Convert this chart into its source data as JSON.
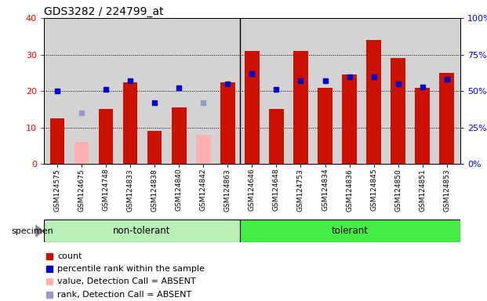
{
  "title": "GDS3282 / 224799_at",
  "samples": [
    "GSM124575",
    "GSM124675",
    "GSM124748",
    "GSM124833",
    "GSM124838",
    "GSM124840",
    "GSM124842",
    "GSM124863",
    "GSM124646",
    "GSM124648",
    "GSM124753",
    "GSM124834",
    "GSM124836",
    "GSM124845",
    "GSM124850",
    "GSM124851",
    "GSM124853"
  ],
  "count": [
    12.5,
    6.0,
    15.0,
    22.5,
    9.0,
    15.5,
    8.0,
    22.5,
    31.0,
    15.0,
    31.0,
    21.0,
    24.5,
    34.0,
    29.0,
    21.0,
    25.0
  ],
  "absent_count": [
    false,
    true,
    false,
    false,
    false,
    false,
    true,
    false,
    false,
    false,
    false,
    false,
    false,
    false,
    false,
    false,
    false
  ],
  "percentile_rank": [
    50,
    35,
    51,
    57,
    42,
    52,
    42,
    55,
    62,
    51,
    57,
    57,
    60,
    60,
    55,
    53,
    58
  ],
  "absent_rank": [
    false,
    true,
    false,
    false,
    false,
    false,
    true,
    false,
    false,
    false,
    false,
    false,
    false,
    false,
    false,
    false,
    false
  ],
  "non_tolerant_count": 8,
  "tolerant_count": 9,
  "left_ylim": [
    0,
    40
  ],
  "right_ylim": [
    0,
    100
  ],
  "left_yticks": [
    0,
    10,
    20,
    30,
    40
  ],
  "right_yticks": [
    0,
    25,
    50,
    75,
    100
  ],
  "bar_color_normal": "#cc1100",
  "bar_color_absent": "#ffb0b0",
  "dot_color_normal": "#0000cc",
  "dot_color_absent": "#9999cc",
  "bg_color": "#d3d3d3",
  "group_nt_color": "#b8f0b8",
  "group_t_color": "#44ee44",
  "legend_labels": [
    "count",
    "percentile rank within the sample",
    "value, Detection Call = ABSENT",
    "rank, Detection Call = ABSENT"
  ],
  "legend_colors": [
    "#cc1100",
    "#0000cc",
    "#ffb0b0",
    "#9999cc"
  ]
}
